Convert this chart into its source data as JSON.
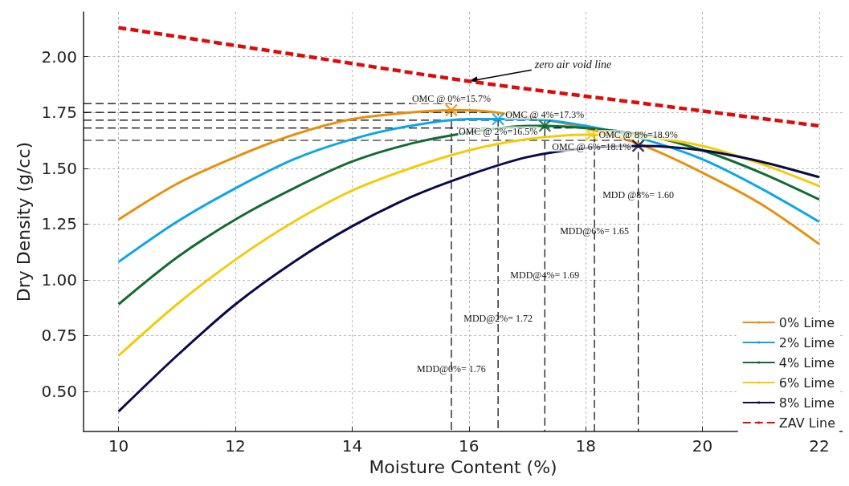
{
  "chart_data": {
    "type": "line",
    "xlabel": "Moisture Content (%)",
    "ylabel": "Dry Density (g/cc)",
    "xlim": [
      9.4,
      22.4
    ],
    "xticks": [
      10,
      12,
      14,
      16,
      18,
      20,
      22
    ],
    "ylim": [
      0.32,
      2.2
    ],
    "yticks": [
      {
        "value": 0.5,
        "label": "0.50"
      },
      0.75,
      {
        "value": 1.0,
        "label": "1.00"
      },
      1.25,
      {
        "value": 1.5,
        "label": "1.50"
      },
      1.75,
      {
        "value": 2.0,
        "label": "2.00"
      }
    ],
    "grid": true,
    "legend": "bottom right",
    "marker": "none",
    "series": [
      {
        "name": "0% Lime",
        "color": "#e8900c",
        "x": [
          10,
          11,
          12,
          13,
          14,
          15,
          15.7,
          16,
          17,
          18,
          19,
          20,
          21,
          22
        ],
        "values": [
          1.27,
          1.43,
          1.55,
          1.65,
          1.72,
          1.75,
          1.76,
          1.76,
          1.73,
          1.68,
          1.6,
          1.48,
          1.34,
          1.16
        ]
      },
      {
        "name": "2% Lime",
        "color": "#0ea5e6",
        "x": [
          10,
          11,
          12,
          13,
          14,
          15,
          16,
          16.5,
          17,
          18,
          19,
          20,
          21,
          22
        ],
        "values": [
          1.08,
          1.26,
          1.41,
          1.54,
          1.63,
          1.69,
          1.72,
          1.72,
          1.72,
          1.69,
          1.63,
          1.54,
          1.41,
          1.26
        ]
      },
      {
        "name": "4% Lime",
        "color": "#136b33",
        "x": [
          10,
          11,
          12,
          13,
          14,
          15,
          16,
          17,
          17.3,
          18,
          19,
          20,
          21,
          22
        ],
        "values": [
          0.89,
          1.1,
          1.27,
          1.41,
          1.53,
          1.61,
          1.66,
          1.69,
          1.69,
          1.68,
          1.65,
          1.58,
          1.48,
          1.36
        ]
      },
      {
        "name": "6% Lime",
        "color": "#f2cc0c",
        "x": [
          10,
          11,
          12,
          13,
          14,
          15,
          16,
          17,
          18,
          18.1,
          19,
          20,
          21,
          22
        ],
        "values": [
          0.66,
          0.89,
          1.09,
          1.26,
          1.4,
          1.5,
          1.58,
          1.63,
          1.65,
          1.65,
          1.64,
          1.6,
          1.52,
          1.42
        ]
      },
      {
        "name": "8% Lime",
        "color": "#0a0a4a",
        "x": [
          10,
          11,
          12,
          13,
          14,
          15,
          16,
          17,
          18,
          18.9,
          19,
          20,
          21,
          22
        ],
        "values": [
          0.41,
          0.66,
          0.89,
          1.08,
          1.24,
          1.37,
          1.47,
          1.55,
          1.59,
          1.6,
          1.6,
          1.58,
          1.53,
          1.46
        ]
      },
      {
        "name": "ZAV Line",
        "color": "#dd0c0c",
        "line_style": "dashed",
        "x": [
          10,
          13,
          16,
          19,
          22
        ],
        "values": [
          2.13,
          2.01,
          1.89,
          1.79,
          1.69
        ]
      },
      {
        "type": "scatter",
        "marker": "cross",
        "x": [
          15.7,
          16.5,
          17.3,
          18.1,
          18.9
        ],
        "values": [
          1.76,
          1.72,
          1.69,
          1.65,
          1.6
        ],
        "colors": [
          "#e8900c",
          "#0ea5e6",
          "#136b33",
          "#f2cc0c",
          "#0a0a4a"
        ]
      },
      {
        "color": "#000000",
        "line_style": "dashed",
        "x": [
          9.4,
          15.7,
          15.7
        ],
        "values": [
          1.79,
          1.79,
          0.32
        ]
      },
      {
        "color": "#000000",
        "line_style": "dashed",
        "x": [
          9.4,
          16.5,
          16.5
        ],
        "values": [
          1.75,
          1.75,
          0.32
        ]
      },
      {
        "color": "#000000",
        "line_style": "dashed",
        "x": [
          9.4,
          17.3,
          17.3
        ],
        "values": [
          1.715,
          1.715,
          0.32
        ]
      },
      {
        "color": "#000000",
        "line_style": "dashed",
        "x": [
          9.4,
          18.15,
          18.15
        ],
        "values": [
          1.68,
          1.68,
          0.32
        ]
      },
      {
        "color": "#000000",
        "line_style": "dashed",
        "x": [
          9.4,
          18.9,
          18.9
        ],
        "values": [
          1.625,
          1.625,
          0.32
        ]
      }
    ],
    "annotations": [
      {
        "text": "zero air void line",
        "x": 16.0,
        "y": 1.89
      },
      {
        "text": "OMC @ 0%=15.7%",
        "x": 15.7,
        "y": 1.76
      },
      {
        "text": "OMC @ 2%=16.5%",
        "x": 16.5,
        "y": 1.72
      },
      {
        "text": "OMC @ 4%=17.3%",
        "x": 17.3,
        "y": 1.69
      },
      {
        "text": "OMC @ 6%=18.1%",
        "x": 18.1,
        "y": 1.65
      },
      {
        "text": "OMC @ 8%=18.9%",
        "x": 18.9,
        "y": 1.6
      },
      {
        "text": "MDD @8%= 1.60",
        "x": 18.9,
        "y": 1.38
      },
      {
        "text": "MDD@6%= 1.65",
        "x": 18.15,
        "y": 1.22
      },
      {
        "text": "MDD@4%= 1.69",
        "x": 17.3,
        "y": 1.02
      },
      {
        "text": "MDD@2%= 1.72",
        "x": 16.5,
        "y": 0.826
      },
      {
        "text": "MDD@0%= 1.76",
        "x": 15.7,
        "y": 0.6
      }
    ]
  }
}
